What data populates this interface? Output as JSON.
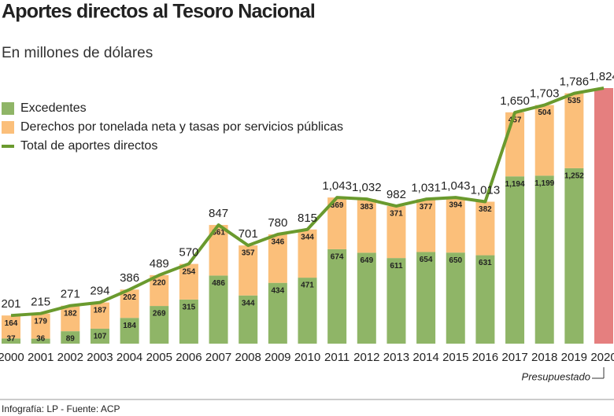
{
  "chart_data": {
    "type": "stacked-bar-line",
    "title": "Aportes directos al Tesoro Nacional",
    "subtitle": "En millones de dólares",
    "source": "Infografía: LP - Fuente: ACP",
    "annotation": "Presupuestado",
    "budget_color": "#e57f7f",
    "categories": [
      "2000",
      "2001",
      "2002",
      "2003",
      "2004",
      "2005",
      "2006",
      "2007",
      "2008",
      "2009",
      "2010",
      "2011",
      "2012",
      "2013",
      "2014",
      "2015",
      "2016",
      "2017",
      "2018",
      "2019",
      "2020"
    ],
    "series": [
      {
        "name": "Excedentes",
        "color": "#8fb567",
        "values": [
          37,
          36,
          89,
          107,
          184,
          269,
          315,
          486,
          344,
          434,
          471,
          674,
          649,
          611,
          654,
          650,
          631,
          1194,
          1199,
          1252,
          null
        ],
        "value_labels": [
          "37",
          "36",
          "89",
          "107",
          "184",
          "269",
          "315",
          "486",
          "344",
          "434",
          "471",
          "674",
          "649",
          "611",
          "654",
          "650",
          "631",
          "1,194",
          "1,199",
          "1,252",
          null
        ]
      },
      {
        "name": "Derechos por tonelada neta y tasas por servicios públicas",
        "color": "#fbbf7a",
        "values": [
          164,
          179,
          182,
          187,
          202,
          220,
          254,
          361,
          357,
          346,
          344,
          369,
          383,
          371,
          377,
          394,
          382,
          457,
          504,
          535,
          null
        ]
      },
      {
        "name": "Total de aportes directos",
        "color": "#6a9a2e",
        "type": "line",
        "values": [
          201,
          215,
          271,
          294,
          386,
          489,
          570,
          847,
          701,
          780,
          815,
          1043,
          1032,
          982,
          1031,
          1043,
          1013,
          1650,
          1703,
          1786,
          1824
        ],
        "value_labels": [
          "201",
          "215",
          "271",
          "294",
          "386",
          "489",
          "570",
          "847",
          "701",
          "780",
          "815",
          "1,043",
          "1,032",
          "982",
          "1,031",
          "1,043",
          "1,013",
          "1,650",
          "1,703",
          "1,786",
          "1,824"
        ]
      }
    ]
  }
}
